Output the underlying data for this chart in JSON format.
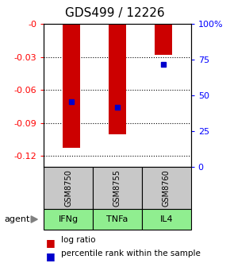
{
  "title": "GDS499 / 12226",
  "samples": [
    "GSM8750",
    "GSM8755",
    "GSM8760"
  ],
  "agents": [
    "IFNg",
    "TNFa",
    "IL4"
  ],
  "log_ratios": [
    -0.113,
    -0.1,
    -0.028
  ],
  "percentile_ranks": [
    0.455,
    0.42,
    0.72
  ],
  "ylim_left": [
    -0.13,
    0.0
  ],
  "ylim_right": [
    0.0,
    1.0
  ],
  "yticks_left": [
    -0.12,
    -0.09,
    -0.06,
    -0.03,
    0.0
  ],
  "ytick_labels_left": [
    "-0.12",
    "-0.09",
    "-0.06",
    "-0.03",
    "-0"
  ],
  "yticks_right": [
    0.0,
    0.25,
    0.5,
    0.75,
    1.0
  ],
  "ytick_labels_right": [
    "0",
    "25",
    "50",
    "75",
    "100%"
  ],
  "bar_color": "#cc0000",
  "dot_color": "#0000cc",
  "sample_box_color": "#c8c8c8",
  "agent_box_color": "#90ee90",
  "title_fontsize": 11,
  "tick_fontsize": 8,
  "legend_fontsize": 7.5
}
